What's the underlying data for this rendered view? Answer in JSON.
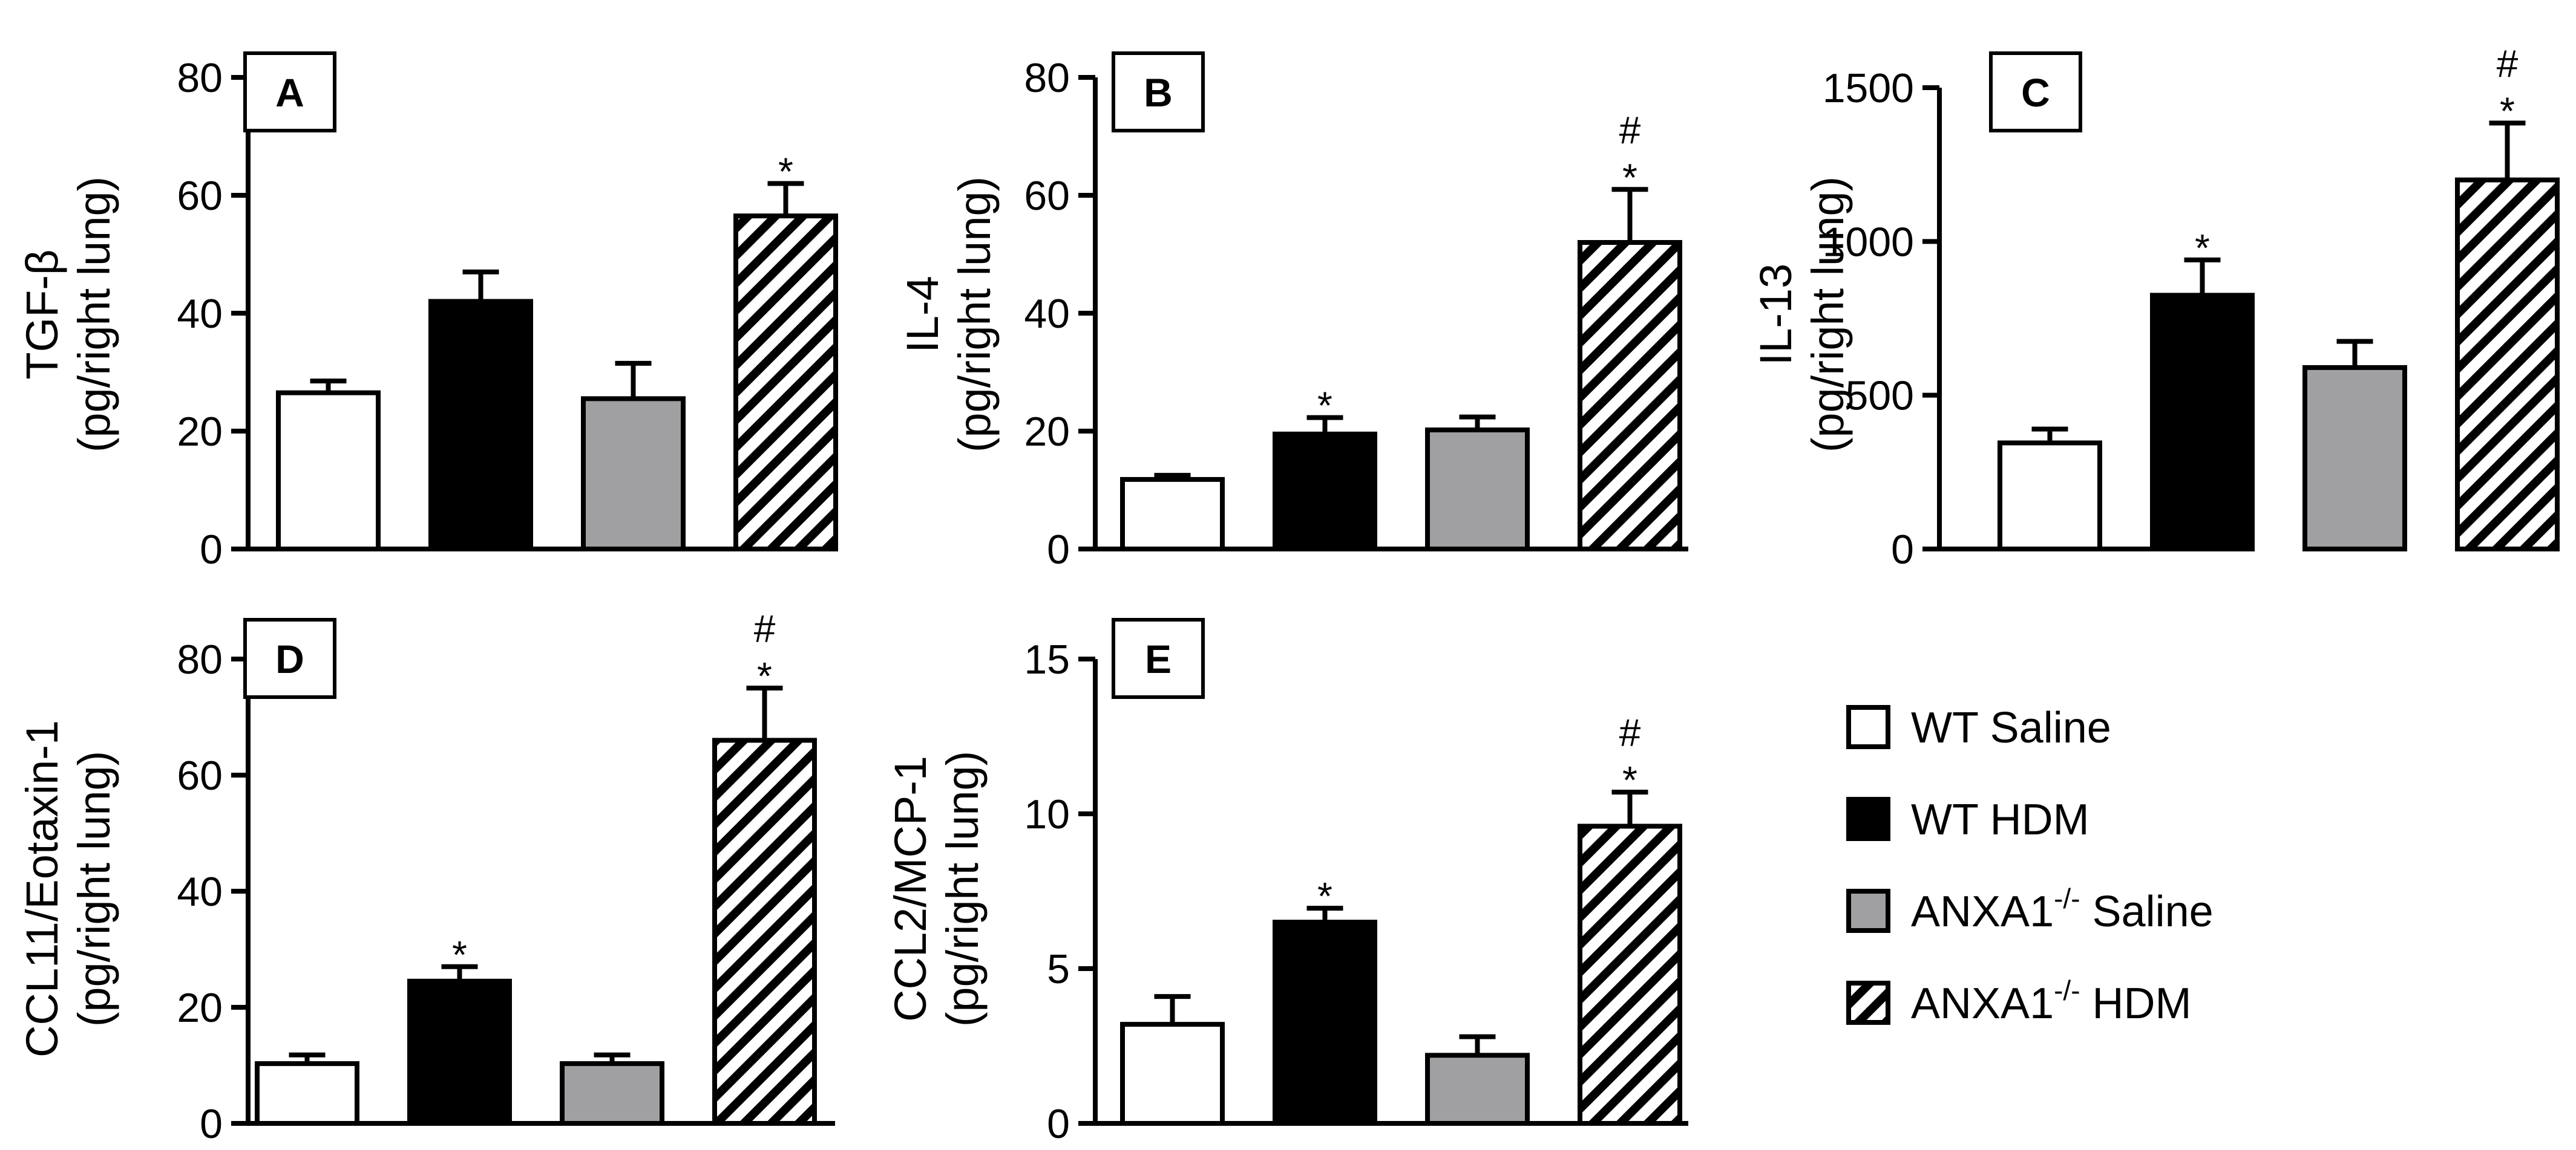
{
  "colors": {
    "wt_saline": "#ffffff",
    "wt_hdm": "#000000",
    "anxa1_saline": "#a0a0a2",
    "anxa1_hdm": "hatch"
  },
  "legend": {
    "items": [
      {
        "key": "wt_saline",
        "label": "WT Saline",
        "base": "WT Saline",
        "sup": "",
        "after": ""
      },
      {
        "key": "wt_hdm",
        "label": "WT HDM",
        "base": "WT HDM",
        "sup": "",
        "after": ""
      },
      {
        "key": "anxa1_saline",
        "label": "ANXA1-/- Saline",
        "base": "ANXA1",
        "sup": "-/-",
        "after": " Saline"
      },
      {
        "key": "anxa1_hdm",
        "label": "ANXA1-/- HDM",
        "base": "ANXA1",
        "sup": "-/-",
        "after": " HDM"
      }
    ]
  },
  "chart_data": [
    {
      "id": "A",
      "type": "bar",
      "panel_label": "A",
      "ylabel_line1": "TGF-β",
      "ylabel_line2": "(pg/right lung)",
      "ylim": [
        0,
        80
      ],
      "yticks": [
        0,
        20,
        40,
        60,
        80
      ],
      "categories": [
        "WT Saline",
        "WT HDM",
        "ANXA1-/- Saline",
        "ANXA1-/- HDM"
      ],
      "values": [
        26.5,
        42,
        25.5,
        56.5
      ],
      "errors": [
        2,
        5,
        6,
        5.5
      ],
      "annotations": [
        "",
        "",
        "",
        "*"
      ]
    },
    {
      "id": "B",
      "type": "bar",
      "panel_label": "B",
      "ylabel_line1": "IL-4",
      "ylabel_line2": "(pg/right lung)",
      "ylim": [
        0,
        80
      ],
      "yticks": [
        0,
        20,
        40,
        60,
        80
      ],
      "categories": [
        "WT Saline",
        "WT HDM",
        "ANXA1-/- Saline",
        "ANXA1-/- HDM"
      ],
      "values": [
        11.8,
        19.5,
        20.2,
        52
      ],
      "errors": [
        0.7,
        2.8,
        2.2,
        9
      ],
      "annotations": [
        "",
        "*",
        "",
        "#\n*"
      ]
    },
    {
      "id": "C",
      "type": "bar",
      "panel_label": "C",
      "ylabel_line1": "IL-13",
      "ylabel_line2": "(pg/right lung)",
      "ylim": [
        0,
        1500
      ],
      "yticks": [
        0,
        500,
        1000,
        1500
      ],
      "categories": [
        "WT Saline",
        "WT HDM",
        "ANXA1-/- Saline",
        "ANXA1-/- HDM"
      ],
      "values": [
        345,
        825,
        590,
        1200
      ],
      "errors": [
        45,
        115,
        85,
        185
      ],
      "annotations": [
        "",
        "*",
        "",
        "#\n*"
      ]
    },
    {
      "id": "D",
      "type": "bar",
      "panel_label": "D",
      "ylabel_line1": "CCL11/Eotaxin-1",
      "ylabel_line2": "(pg/right lung)",
      "ylim": [
        0,
        80
      ],
      "yticks": [
        0,
        20,
        40,
        60,
        80
      ],
      "categories": [
        "WT Saline",
        "WT HDM",
        "ANXA1-/- Saline",
        "ANXA1-/- HDM"
      ],
      "values": [
        10.3,
        24.5,
        10.3,
        66
      ],
      "errors": [
        1.5,
        2.5,
        1.5,
        9
      ],
      "annotations": [
        "",
        "*",
        "",
        "#\n*"
      ]
    },
    {
      "id": "E",
      "type": "bar",
      "panel_label": "E",
      "ylabel_line1": "CCL2/MCP-1",
      "ylabel_line2": "(pg/right lung)",
      "ylim": [
        0,
        15
      ],
      "yticks": [
        0,
        5,
        10,
        15
      ],
      "categories": [
        "WT Saline",
        "WT HDM",
        "ANXA1-/- Saline",
        "ANXA1-/- HDM"
      ],
      "values": [
        3.2,
        6.5,
        2.2,
        9.6
      ],
      "errors": [
        0.9,
        0.45,
        0.6,
        1.1
      ],
      "annotations": [
        "",
        "*",
        "",
        "#\n*"
      ]
    }
  ]
}
